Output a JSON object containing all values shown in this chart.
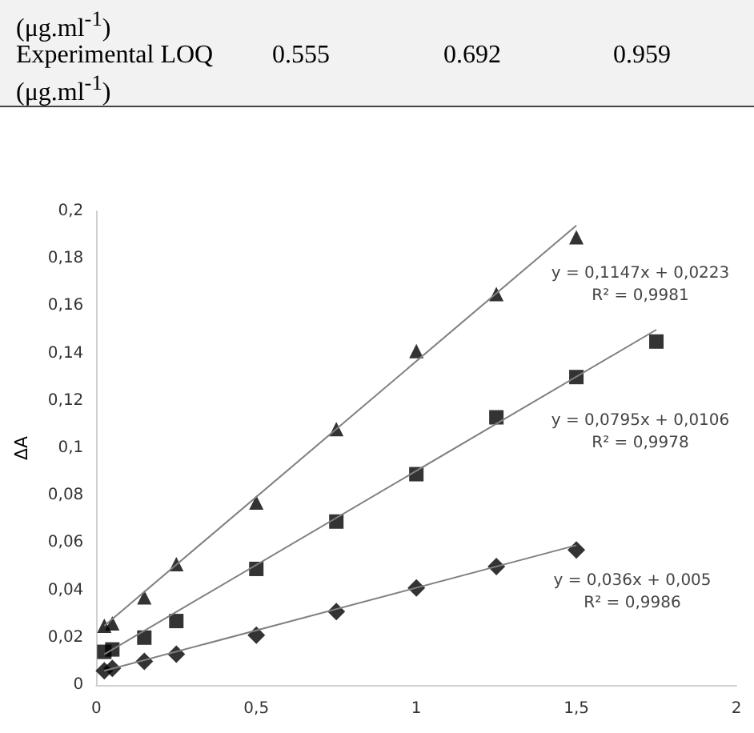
{
  "chart_data": {
    "type": "scatter",
    "ylabel": "ΔA",
    "x": [
      0.025,
      0.05,
      0.15,
      0.25,
      0.5,
      0.75,
      1,
      1.25,
      1.5
    ],
    "series": [
      {
        "color": "#000000",
        "marker": "triangle",
        "values": [
          0.025,
          0.026,
          0.037,
          0.051,
          0.077,
          0.108,
          0.141,
          0.165,
          0.189
        ]
      },
      {
        "color": "#000000",
        "marker": "square",
        "x": [
          0.025,
          0.05,
          0.15,
          0.25,
          0.5,
          0.75,
          1,
          1.25,
          1.5,
          1.75
        ],
        "values": [
          0.014,
          0.015,
          0.02,
          0.027,
          0.049,
          0.069,
          0.089,
          0.113,
          0.13,
          0.145
        ]
      },
      {
        "color": "#000000",
        "marker": "diamond",
        "values": [
          0.006,
          0.007,
          0.01,
          0.013,
          0.021,
          0.031,
          0.041,
          0.05,
          0.057
        ]
      },
      {
        "type": "line",
        "color": "#808080",
        "marker": "none",
        "x": [
          0.025,
          1.5
        ],
        "values": [
          0.025,
          0.194
        ]
      },
      {
        "type": "line",
        "color": "#808080",
        "marker": "none",
        "x": [
          0.025,
          1.75
        ],
        "values": [
          0.013,
          0.15
        ]
      },
      {
        "type": "line",
        "color": "#808080",
        "marker": "none",
        "x": [
          0.025,
          1.5
        ],
        "values": [
          0.006,
          0.059
        ]
      }
    ],
    "xlim": [
      0,
      2
    ],
    "xticks": [
      0,
      {
        "value": 0.5,
        "label": "0,5"
      },
      1,
      {
        "value": 1.5,
        "label": "1,5"
      },
      2
    ],
    "ylim": [
      0,
      0.2
    ],
    "yticks": [
      0,
      {
        "value": 0.02,
        "label": "0,02"
      },
      {
        "value": 0.04,
        "label": "0,04"
      },
      {
        "value": 0.06,
        "label": "0,06"
      },
      {
        "value": 0.08,
        "label": "0,08"
      },
      {
        "value": 0.1,
        "label": "0,1"
      },
      {
        "value": 0.12,
        "label": "0,12"
      },
      {
        "value": 0.14,
        "label": "0,14"
      },
      {
        "value": 0.16,
        "label": "0,16"
      },
      {
        "value": 0.18,
        "label": "0,18"
      },
      {
        "value": 0.2,
        "label": "0,2"
      }
    ],
    "grid": false,
    "annotations": [
      "(μg.ml$^{-1}$)",
      "Experimental LOQ (μg.ml$^{-1}$)",
      "0.555",
      "0.692",
      "0.959",
      "y = 0,1147x + 0,0223\nR² = 0,9981",
      "y = 0,0795x + 0,0106\nR² = 0,9978",
      "y = 0,036x + 0,005\nR² = 0,9986"
    ]
  }
}
